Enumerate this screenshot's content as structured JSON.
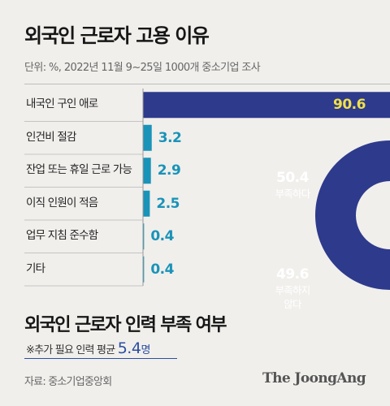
{
  "title": "외국인 근로자 고용 이유",
  "unit_note": "단위: %, 2022년 11월 9~25일 1000개 중소기업 조사",
  "chart_data": [
    {
      "type": "bar",
      "orientation": "horizontal",
      "categories": [
        "내국인 구인 애로",
        "인건비 절감",
        "잔업 또는 휴일 근로 가능",
        "이직 인원이 적음",
        "업무 지침 준수함",
        "기타"
      ],
      "values": [
        90.6,
        3.2,
        2.9,
        2.5,
        0.4,
        0.4
      ],
      "value_labels": [
        "90.6",
        "3.2",
        "2.9",
        "2.5",
        "0.4",
        "0.4"
      ],
      "xlim": [
        0,
        90.6
      ],
      "colors": {
        "top_bar": "#2e3a8c",
        "bars": "#1a93b8",
        "top_value": "#f0e14a",
        "values": "#1a93b8"
      }
    },
    {
      "type": "pie",
      "style": "donut",
      "title": "외국인 근로자 인력 부족 여부",
      "slices": [
        {
          "label": "부족하다",
          "value": 50.4,
          "value_label": "50.4",
          "color": "#2e3a8c"
        },
        {
          "label": "부족하지\n않다",
          "value": 49.6,
          "value_label": "49.6",
          "color": "#1a9bd4"
        }
      ]
    }
  ],
  "note": {
    "prefix": "※추가 필요 인력 평균",
    "value": "5.4",
    "unit": "명"
  },
  "source": "자료: 중소기업중앙회",
  "brand": "The JoongAng"
}
